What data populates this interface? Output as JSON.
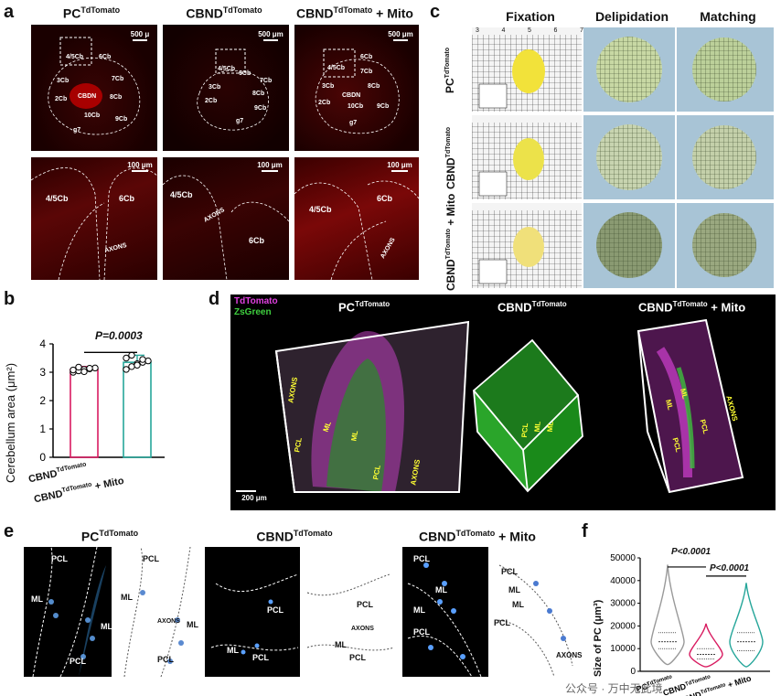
{
  "panels": {
    "a": {
      "letter": "a",
      "col_titles": [
        "PC",
        "CBND",
        "CBND"
      ],
      "col_sup": "TdTomato",
      "col_suffix": [
        "",
        "",
        " + Mito"
      ],
      "scale_top": [
        "500 μ",
        "500 μm",
        "500 μm"
      ],
      "scale_bottom": [
        "100 μm",
        "100 μm",
        "100 μm"
      ],
      "lobules": [
        "4/5Cb",
        "6Cb",
        "7Cb",
        "8Cb",
        "9Cb",
        "10Cb",
        "3Cb",
        "2Cb",
        "CBDN",
        "g7"
      ],
      "bottom_labels": {
        "lobule_a": "4/5Cb",
        "lobule_b": "6Cb",
        "axons": "AXONS"
      }
    },
    "b": {
      "letter": "b",
      "ylabel": "Cerebellum area (μm²)",
      "pvalue": "P=0.0003",
      "xcat1_main": "CBND",
      "xcat1_sup": "TdTomato",
      "xcat2_main": "CBND",
      "xcat2_sup": "TdTomato",
      "xcat2_suffix": " + Mito"
    },
    "c": {
      "letter": "c",
      "headers": [
        "Fixation",
        "Delipidation",
        "Matching"
      ],
      "rows": [
        "PC",
        "CBND",
        "CBND"
      ],
      "row_sup": "TdTomato",
      "row_suffix": [
        "",
        "",
        "+ Mito"
      ],
      "ruler_ticks": [
        "3",
        "4",
        "5",
        "6",
        "7"
      ]
    },
    "d": {
      "letter": "d",
      "legend": {
        "tdtomato": "TdTomato",
        "zsgreen": "ZsGreen"
      },
      "titles": [
        "PC",
        "CBND",
        "CBND"
      ],
      "title_sup": "TdTomato",
      "title_suffix": [
        "",
        "",
        " + Mito"
      ],
      "labels": [
        "AXONS",
        "PCL",
        "ML",
        "ML",
        "PCL",
        "AXONS"
      ],
      "scale": "200 μm"
    },
    "e": {
      "letter": "e",
      "titles": [
        "PC",
        "CBND",
        "CBND"
      ],
      "title_sup": "TdTomato",
      "title_suffix": [
        "",
        "",
        " + Mito"
      ],
      "labels": {
        "pcl": "PCL",
        "ml": "ML",
        "axons": "AXONS"
      }
    },
    "f": {
      "letter": "f",
      "ylabel": "Size of PC (μm³)",
      "p1": "P<0.0001",
      "p2": "P<0.0001"
    }
  },
  "chart_data": [
    {
      "type": "bar",
      "panel": "b",
      "categories": [
        "CBND TdTomato",
        "CBND TdTomato + Mito"
      ],
      "values": [
        3.1,
        3.35
      ],
      "errors": [
        0.1,
        0.25
      ],
      "points": [
        [
          3.0,
          3.05,
          3.1,
          3.12,
          3.15,
          3.08,
          3.18,
          3.02,
          3.14
        ],
        [
          3.1,
          3.2,
          3.3,
          3.35,
          3.4,
          3.5,
          3.6,
          3.25,
          3.45
        ]
      ],
      "ylabel": "Cerebellum area (μm²)",
      "ylim": [
        0,
        4
      ],
      "yticks": [
        0,
        1,
        2,
        3,
        4
      ],
      "annotation": "P=0.0003",
      "colors": [
        "#d81b60",
        "#26a69a"
      ]
    },
    {
      "type": "violin",
      "panel": "f",
      "categories": [
        "PC TdTomato",
        "CBND TdTomato",
        "CBND TdTomato + Mito"
      ],
      "medians": [
        13000,
        7500,
        13000
      ],
      "quartiles": [
        [
          10000,
          17000
        ],
        [
          5500,
          10000
        ],
        [
          9000,
          17000
        ]
      ],
      "ranges": [
        [
          3000,
          47000
        ],
        [
          2000,
          21000
        ],
        [
          2000,
          39000
        ]
      ],
      "ylabel": "Size of PC (μm³)",
      "ylim": [
        0,
        50000
      ],
      "yticks": [
        0,
        10000,
        20000,
        30000,
        40000,
        50000
      ],
      "annotations": [
        "P<0.0001",
        "P<0.0001"
      ],
      "colors": [
        "#999999",
        "#d81b60",
        "#26a69a"
      ]
    }
  ],
  "watermark": "公众号 · 万中无此境"
}
